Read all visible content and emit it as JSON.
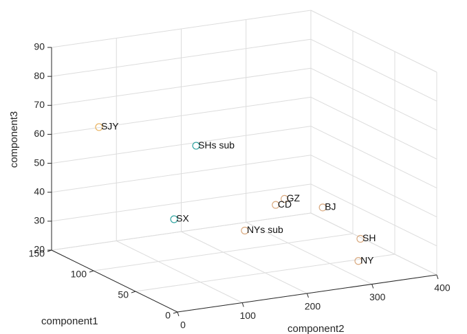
{
  "chart_data": {
    "type": "scatter",
    "xlabel": "component1",
    "ylabel": "component2",
    "zlabel": "component3",
    "xlim": [
      0,
      150
    ],
    "ylim": [
      0,
      400
    ],
    "zlim": [
      20,
      90
    ],
    "x_ticks": [
      "0",
      "50",
      "100",
      "150"
    ],
    "y_ticks": [
      "0",
      "100",
      "200",
      "300",
      "400"
    ],
    "z_ticks": [
      "20",
      "30",
      "40",
      "50",
      "60",
      "70",
      "80",
      "90"
    ],
    "grid": true,
    "points": [
      {
        "label": "SJY",
        "x": 129,
        "y": 46,
        "z": 64,
        "color": "#e8b15c"
      },
      {
        "label": "SHs sub",
        "x": 106,
        "y": 166,
        "z": 57,
        "color": "#2fa4a0"
      },
      {
        "label": "GZ",
        "x": 64,
        "y": 248,
        "z": 42,
        "color": "#d9a97f"
      },
      {
        "label": "CD",
        "x": 66,
        "y": 237,
        "z": 40,
        "color": "#d9a97f"
      },
      {
        "label": "BJ",
        "x": 54,
        "y": 294,
        "z": 39,
        "color": "#d9a97f"
      },
      {
        "label": "SX",
        "x": 99,
        "y": 123,
        "z": 34,
        "color": "#2fa4a0"
      },
      {
        "label": "NYs sub",
        "x": 75,
        "y": 201,
        "z": 31,
        "color": "#d9a97f"
      },
      {
        "label": "SH",
        "x": 23,
        "y": 312,
        "z": 32,
        "color": "#d9a97f"
      },
      {
        "label": "NY",
        "x": 20,
        "y": 305,
        "z": 25,
        "color": "#d9a97f"
      }
    ]
  }
}
